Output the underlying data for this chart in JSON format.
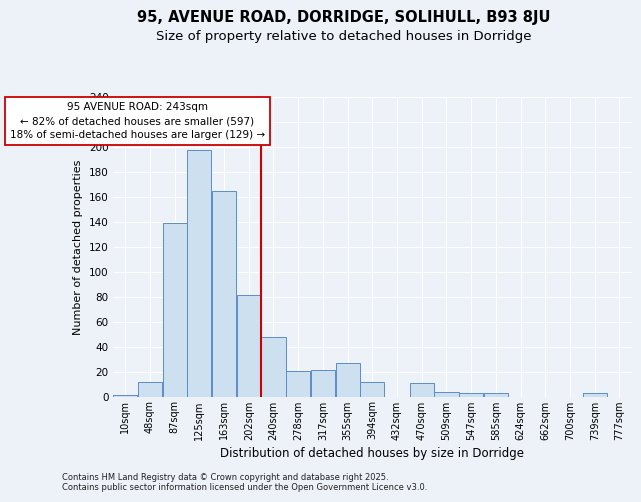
{
  "title1": "95, AVENUE ROAD, DORRIDGE, SOLIHULL, B93 8JU",
  "title2": "Size of property relative to detached houses in Dorridge",
  "xlabel": "Distribution of detached houses by size in Dorridge",
  "ylabel": "Number of detached properties",
  "footnote": "Contains HM Land Registry data © Crown copyright and database right 2025.\nContains public sector information licensed under the Open Government Licence v3.0.",
  "bin_labels": [
    "10sqm",
    "48sqm",
    "87sqm",
    "125sqm",
    "163sqm",
    "202sqm",
    "240sqm",
    "278sqm",
    "317sqm",
    "355sqm",
    "394sqm",
    "432sqm",
    "470sqm",
    "509sqm",
    "547sqm",
    "585sqm",
    "624sqm",
    "662sqm",
    "700sqm",
    "739sqm",
    "777sqm"
  ],
  "bar_heights": [
    2,
    12,
    139,
    198,
    165,
    82,
    48,
    21,
    22,
    27,
    12,
    0,
    11,
    4,
    3,
    3,
    0,
    0,
    0,
    3,
    0
  ],
  "bar_color": "#cce0f0",
  "bar_edge_color": "#5b8cc8",
  "vline_bin_index": 6,
  "property_line_label": "95 AVENUE ROAD: 243sqm",
  "annotation_line1": "← 82% of detached houses are smaller (597)",
  "annotation_line2": "18% of semi-detached houses are larger (129) →",
  "annotation_box_color": "#ffffff",
  "annotation_box_edge_color": "#cc0000",
  "vline_color": "#cc0000",
  "ylim": [
    0,
    240
  ],
  "yticks": [
    0,
    20,
    40,
    60,
    80,
    100,
    120,
    140,
    160,
    180,
    200,
    220,
    240
  ],
  "bg_color": "#edf1f8",
  "plot_bg_color": "#edf1f8",
  "title_fontsize": 10.5,
  "subtitle_fontsize": 9.5,
  "grid_color": "#ffffff"
}
